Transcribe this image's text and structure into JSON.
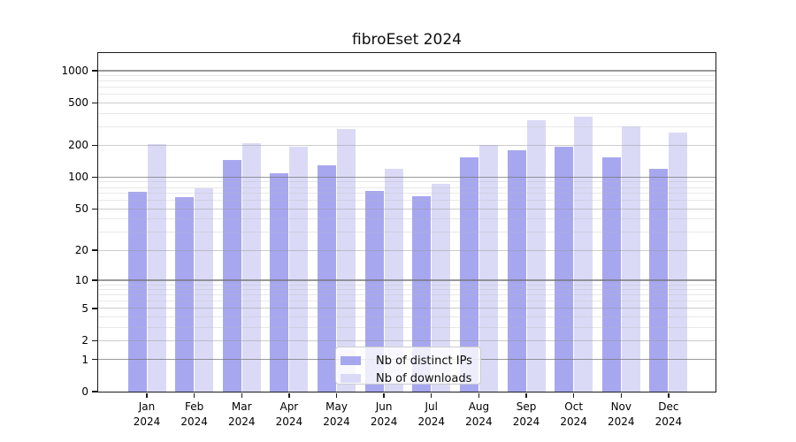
{
  "title": "fibroEset 2024",
  "chart_data": {
    "type": "bar",
    "title": "fibroEset 2024",
    "categories": [
      "Jan",
      "Feb",
      "Mar",
      "Apr",
      "May",
      "Jun",
      "Jul",
      "Aug",
      "Sep",
      "Oct",
      "Nov",
      "Dec"
    ],
    "year": "2024",
    "series": [
      {
        "name": "Nb of distinct IPs",
        "color": "#a7a7f0",
        "values": [
          73,
          65,
          146,
          108,
          130,
          74,
          66,
          154,
          179,
          192,
          154,
          120
        ]
      },
      {
        "name": "Nb of downloads",
        "color": "#dadaf7",
        "values": [
          207,
          78,
          211,
          192,
          285,
          119,
          87,
          200,
          341,
          368,
          298,
          262
        ]
      }
    ],
    "y_ticks": [
      0,
      1,
      2,
      5,
      10,
      20,
      50,
      100,
      200,
      500,
      1000
    ],
    "y_scale": "log10(1+v)",
    "ylim": [
      0,
      1445
    ],
    "xlabel": "",
    "ylabel": "",
    "grid": "on",
    "legend_position": "bottom-center"
  },
  "legend": {
    "items": [
      {
        "label": "Nb of distinct IPs",
        "color": "#a7a7f0"
      },
      {
        "label": "Nb of downloads",
        "color": "#dadaf7"
      }
    ]
  },
  "colors": {
    "bar_distinct_ips": "#a7a7f0",
    "bar_downloads": "#dadaf7",
    "spine": "#1a1a1a",
    "grid_major": "#9a9a9a",
    "grid_mid": "#cacaca",
    "grid_minor": "#e4e4e4"
  }
}
